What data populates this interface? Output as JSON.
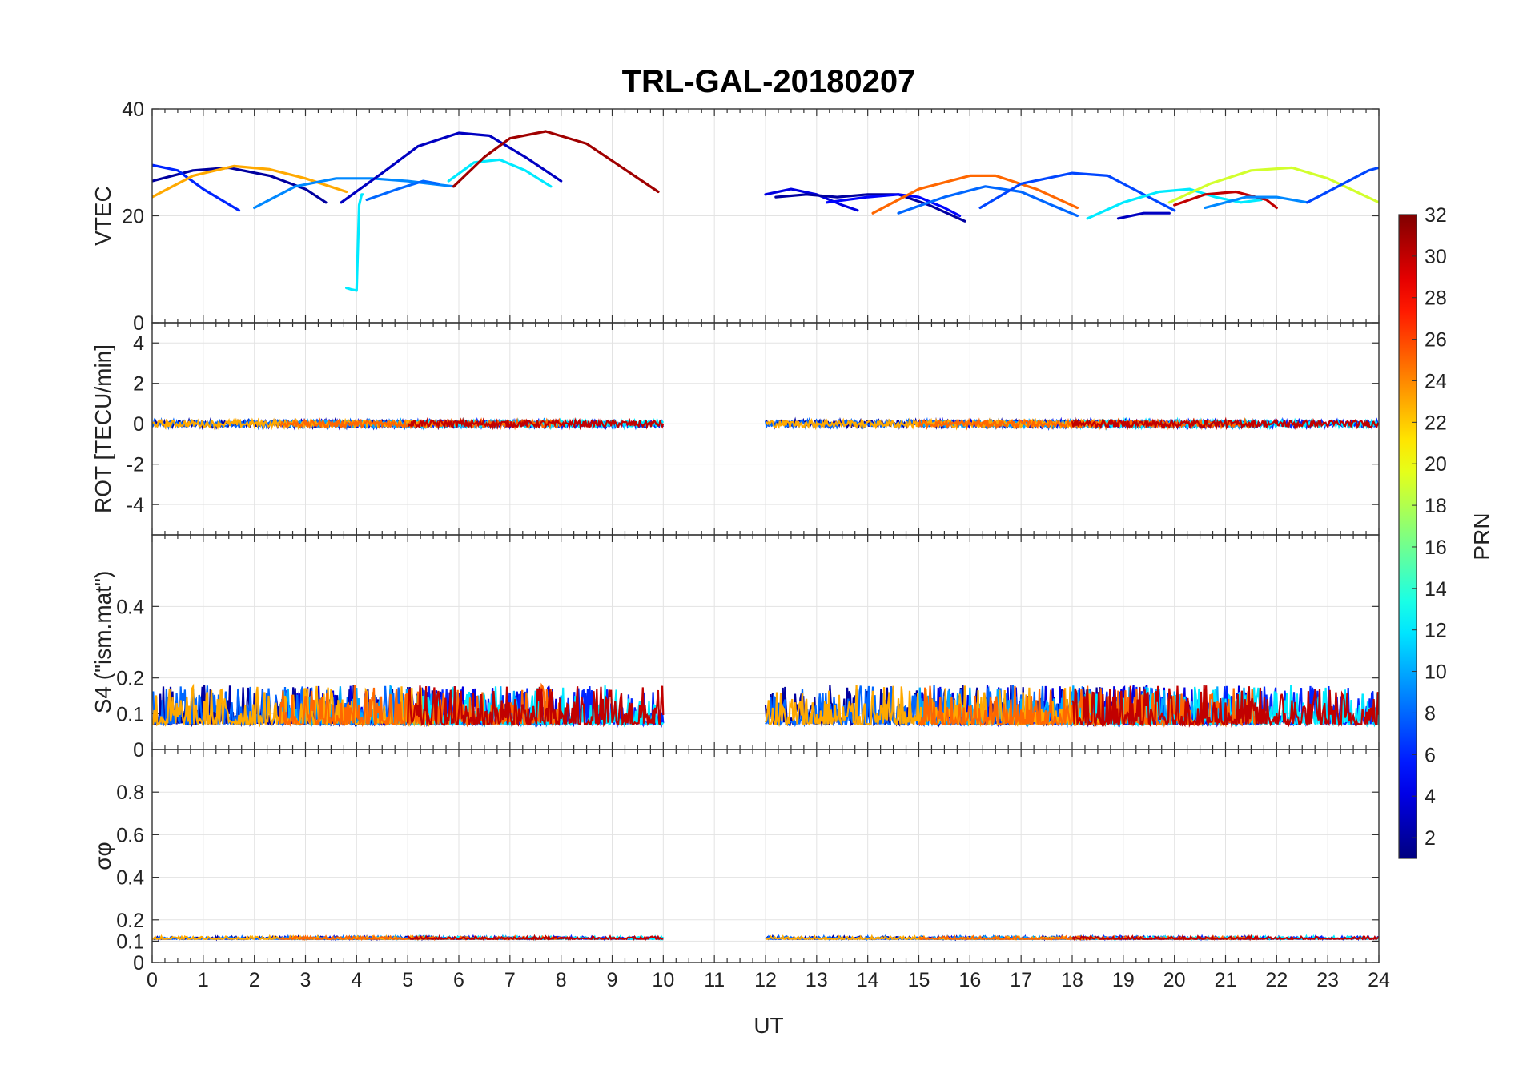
{
  "chart_data": {
    "type": "line",
    "title": "TRL-GAL-20180207",
    "xlabel": "UT",
    "x_ticks": [
      0,
      1,
      2,
      3,
      4,
      5,
      6,
      7,
      8,
      9,
      10,
      11,
      12,
      13,
      14,
      15,
      16,
      17,
      18,
      19,
      20,
      21,
      22,
      23,
      24
    ],
    "xlim": [
      0,
      24
    ],
    "colorbar": {
      "label": "PRN",
      "range": [
        1,
        32
      ],
      "ticks": [
        2,
        4,
        6,
        8,
        10,
        12,
        14,
        16,
        18,
        20,
        22,
        24,
        26,
        28,
        30,
        32
      ],
      "colormap": "jet"
    },
    "panels": [
      {
        "id": "vtec",
        "ylabel": "VTEC",
        "ylim": [
          0,
          40
        ],
        "yticks": [
          0,
          20,
          40
        ],
        "series": [
          {
            "prn": 2,
            "x": [
              0,
              0.8,
              1.5,
              2.3,
              3.0,
              3.4
            ],
            "y": [
              26.5,
              28.5,
              29,
              27.5,
              25,
              22.5
            ]
          },
          {
            "prn": 6,
            "x": [
              0,
              0.5,
              1.0,
              1.7
            ],
            "y": [
              29.5,
              28.5,
              25,
              21
            ]
          },
          {
            "prn": 23,
            "x": [
              0,
              0.8,
              1.6,
              2.3,
              3.0,
              3.8
            ],
            "y": [
              23.5,
              27.5,
              29.3,
              28.7,
              27,
              24.5
            ]
          },
          {
            "prn": 9,
            "x": [
              2.0,
              2.8,
              3.6,
              4.3,
              5.0,
              5.9
            ],
            "y": [
              21.5,
              25.5,
              27,
              27,
              26.5,
              25.5
            ]
          },
          {
            "prn": 12,
            "x": [
              3.8,
              3.9,
              4.0,
              4.05,
              4.1,
              4.12
            ],
            "y": [
              6.5,
              6.2,
              6,
              22,
              24,
              24
            ]
          },
          {
            "prn": 8,
            "x": [
              4.2,
              4.8,
              5.3,
              5.6
            ],
            "y": [
              23,
              25,
              26.5,
              26
            ]
          },
          {
            "prn": 3,
            "x": [
              3.7,
              4.5,
              5.2,
              6.0,
              6.6,
              7.3,
              8.0
            ],
            "y": [
              22.5,
              28,
              33,
              35.5,
              35,
              31,
              26.5
            ]
          },
          {
            "prn": 12,
            "x": [
              5.8,
              6.3,
              6.8,
              7.3,
              7.8
            ],
            "y": [
              26.5,
              30,
              30.5,
              28.5,
              25.5
            ]
          },
          {
            "prn": 31,
            "x": [
              5.9,
              6.5,
              7.0,
              7.7,
              8.5,
              9.2,
              9.9
            ],
            "y": [
              25.5,
              31,
              34.5,
              35.8,
              33.5,
              29,
              24.5
            ]
          },
          {
            "prn": 4,
            "x": [
              12.0,
              12.5,
              13.0,
              13.5,
              13.8
            ],
            "y": [
              24,
              25,
              24,
              22,
              21
            ]
          },
          {
            "prn": 2,
            "x": [
              12.2,
              12.8,
              13.4,
              14.0,
              14.6,
              15.2,
              15.9
            ],
            "y": [
              23.5,
              24,
              23.5,
              24,
              24,
              22,
              19
            ]
          },
          {
            "prn": 5,
            "x": [
              13.2,
              14.0,
              14.6,
              15.0,
              15.5,
              15.8
            ],
            "y": [
              22.5,
              23.5,
              24,
              23.5,
              21.5,
              20
            ]
          },
          {
            "prn": 25,
            "x": [
              14.1,
              15.0,
              16.0,
              16.5,
              17.3,
              18.1
            ],
            "y": [
              20.5,
              25,
              27.5,
              27.5,
              25,
              21.5
            ]
          },
          {
            "prn": 8,
            "x": [
              14.6,
              15.5,
              16.3,
              17.0,
              17.6,
              18.1
            ],
            "y": [
              20.5,
              23.5,
              25.5,
              24.5,
              22,
              20
            ]
          },
          {
            "prn": 7,
            "x": [
              16.2,
              17.0,
              18.0,
              18.7,
              19.3,
              20.0
            ],
            "y": [
              21.5,
              26,
              28,
              27.5,
              24.5,
              21
            ]
          },
          {
            "prn": 3,
            "x": [
              18.9,
              19.4,
              19.9
            ],
            "y": [
              19.5,
              20.5,
              20.5
            ]
          },
          {
            "prn": 12,
            "x": [
              18.3,
              19.0,
              19.7,
              20.3,
              20.8,
              21.3,
              21.7
            ],
            "y": [
              19.5,
              22.5,
              24.5,
              25,
              23.5,
              22.5,
              23
            ]
          },
          {
            "prn": 19,
            "x": [
              19.9,
              20.7,
              21.5,
              22.3,
              23.0,
              24.0
            ],
            "y": [
              22.5,
              26,
              28.5,
              29,
              27,
              22.5
            ]
          },
          {
            "prn": 30,
            "x": [
              20.0,
              20.6,
              21.2,
              21.8,
              22.0
            ],
            "y": [
              22,
              24,
              24.5,
              23,
              21.5
            ]
          },
          {
            "prn": 9,
            "x": [
              20.6,
              21.4,
              22.0,
              22.6
            ],
            "y": [
              21.5,
              23.5,
              23.5,
              22.5
            ]
          },
          {
            "prn": 7,
            "x": [
              22.6,
              23.2,
              23.8,
              24.0
            ],
            "y": [
              22.5,
              25.5,
              28.5,
              29
            ]
          }
        ]
      },
      {
        "id": "rot",
        "ylabel": "ROT [TECU/min]",
        "ylim": [
          -5.5,
          5
        ],
        "yticks": [
          -4,
          -2,
          0,
          2,
          4
        ],
        "noise": {
          "amplitude": 0.35,
          "coverage": [
            [
              0,
              10.0
            ],
            [
              12.0,
              24.0
            ]
          ]
        }
      },
      {
        "id": "s4",
        "ylabel": "S4 (\"ism.mat\")",
        "ylim": [
          0,
          0.6
        ],
        "yticks": [
          0,
          0.1,
          0.2,
          0.4
        ],
        "noise": {
          "baseline": 0.07,
          "amplitude": 0.1,
          "coverage": [
            [
              0,
              10.0
            ],
            [
              12.0,
              24.0
            ]
          ]
        }
      },
      {
        "id": "sigma_phi",
        "ylabel": "σφ",
        "ylim": [
          0,
          1
        ],
        "yticks": [
          0,
          0.1,
          0.2,
          0.4,
          0.6,
          0.8
        ],
        "noise": {
          "baseline": 0.11,
          "amplitude": 0.02,
          "coverage": [
            [
              0,
              10.0
            ],
            [
              12.0,
              24.0
            ]
          ]
        }
      }
    ]
  }
}
